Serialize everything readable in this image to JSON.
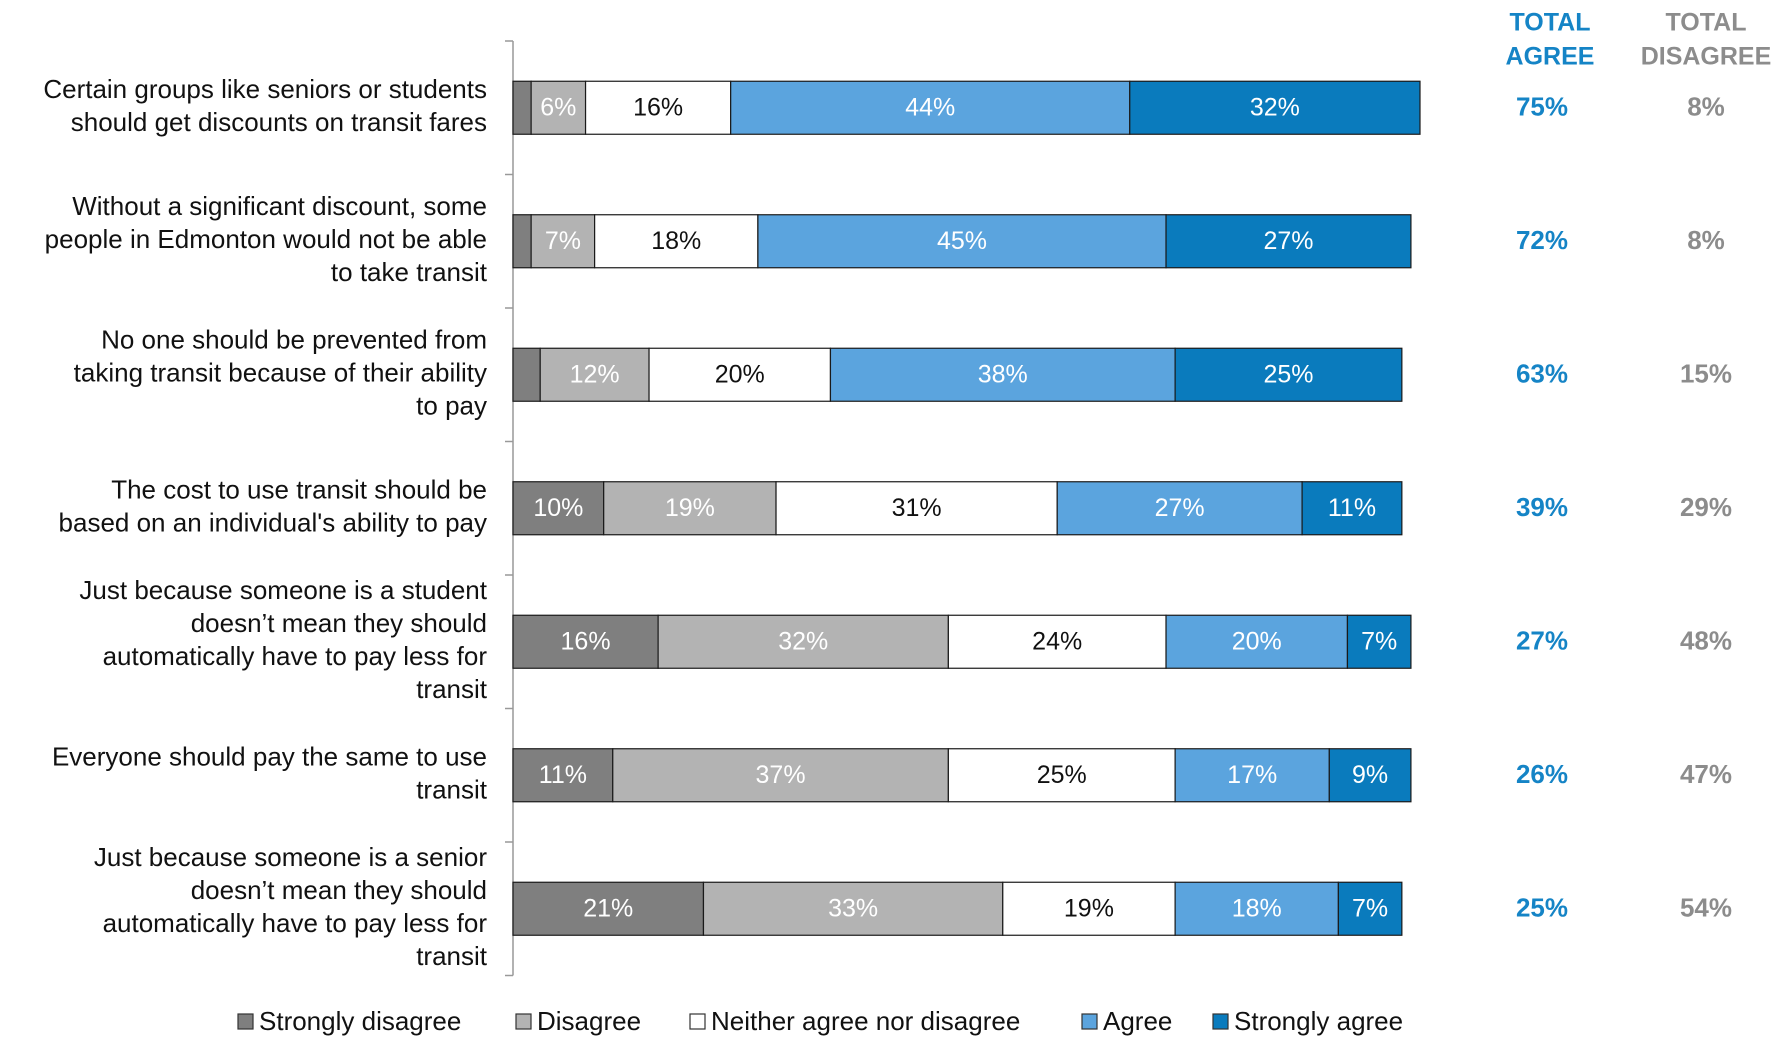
{
  "chart_data": {
    "type": "bar",
    "orientation": "horizontal",
    "stacked": true,
    "xlim": [
      0,
      100
    ],
    "unit": "%",
    "categories": [
      "Certain groups like seniors or students should get discounts on transit fares",
      "Without a significant discount, some people in Edmonton would not be able to take transit",
      "No one should be prevented from taking transit because of their ability to pay",
      "The cost to use transit should be based on an individual's ability to pay",
      "Just because someone is a student doesn’t mean they should automatically have to pay less for transit",
      "Everyone should pay the same to use transit",
      "Just because someone is a senior doesn’t mean they should automatically have to pay less for transit"
    ],
    "category_lines": [
      [
        "Certain groups like seniors or students",
        "should get discounts on transit fares"
      ],
      [
        "Without a significant discount, some",
        "people in Edmonton would not be able",
        "to take transit"
      ],
      [
        "No one should be prevented from",
        "taking transit because of their ability",
        "to pay"
      ],
      [
        "The cost to use transit should be",
        "based on an individual's ability to pay"
      ],
      [
        "Just because someone is a student",
        "doesn’t mean they should",
        "automatically have to pay less for",
        "transit"
      ],
      [
        "Everyone should pay the same to use",
        "transit"
      ],
      [
        "Just because someone is a senior",
        "doesn’t mean they should",
        "automatically have to pay less for",
        "transit"
      ]
    ],
    "series": [
      {
        "name": "Strongly disagree",
        "color": "#7f7f7f",
        "label_color": "#ffffff",
        "values": [
          2,
          2,
          3,
          10,
          16,
          11,
          21
        ],
        "labels": [
          "",
          "",
          "",
          "10%",
          "16%",
          "11%",
          "21%"
        ]
      },
      {
        "name": "Disagree",
        "color": "#b3b3b3",
        "label_color": "#ffffff",
        "values": [
          6,
          7,
          12,
          19,
          32,
          37,
          33
        ],
        "labels": [
          "6%",
          "7%",
          "12%",
          "19%",
          "32%",
          "37%",
          "33%"
        ]
      },
      {
        "name": "Neither agree nor disagree",
        "color": "#ffffff",
        "label_color": "#111111",
        "values": [
          16,
          18,
          20,
          31,
          24,
          25,
          19
        ],
        "labels": [
          "16%",
          "18%",
          "20%",
          "31%",
          "24%",
          "25%",
          "19%"
        ]
      },
      {
        "name": "Agree",
        "color": "#5ba4de",
        "label_color": "#ffffff",
        "values": [
          44,
          45,
          38,
          27,
          20,
          17,
          18
        ],
        "labels": [
          "44%",
          "45%",
          "38%",
          "27%",
          "20%",
          "17%",
          "18%"
        ]
      },
      {
        "name": "Strongly agree",
        "color": "#0a7bbd",
        "label_color": "#ffffff",
        "values": [
          32,
          27,
          25,
          11,
          7,
          9,
          7
        ],
        "labels": [
          "32%",
          "27%",
          "25%",
          "11%",
          "7%",
          "9%",
          "7%"
        ]
      }
    ],
    "totals": {
      "agree": {
        "header": [
          "TOTAL",
          "AGREE"
        ],
        "color": "#1584c6",
        "values": [
          "75%",
          "72%",
          "63%",
          "39%",
          "27%",
          "26%",
          "25%"
        ]
      },
      "disagree": {
        "header": [
          "TOTAL",
          "DISAGREE"
        ],
        "color": "#8c8c8c",
        "values": [
          "8%",
          "8%",
          "15%",
          "29%",
          "48%",
          "47%",
          "54%"
        ]
      }
    },
    "legend": {
      "position": "bottom"
    },
    "grid": false
  }
}
